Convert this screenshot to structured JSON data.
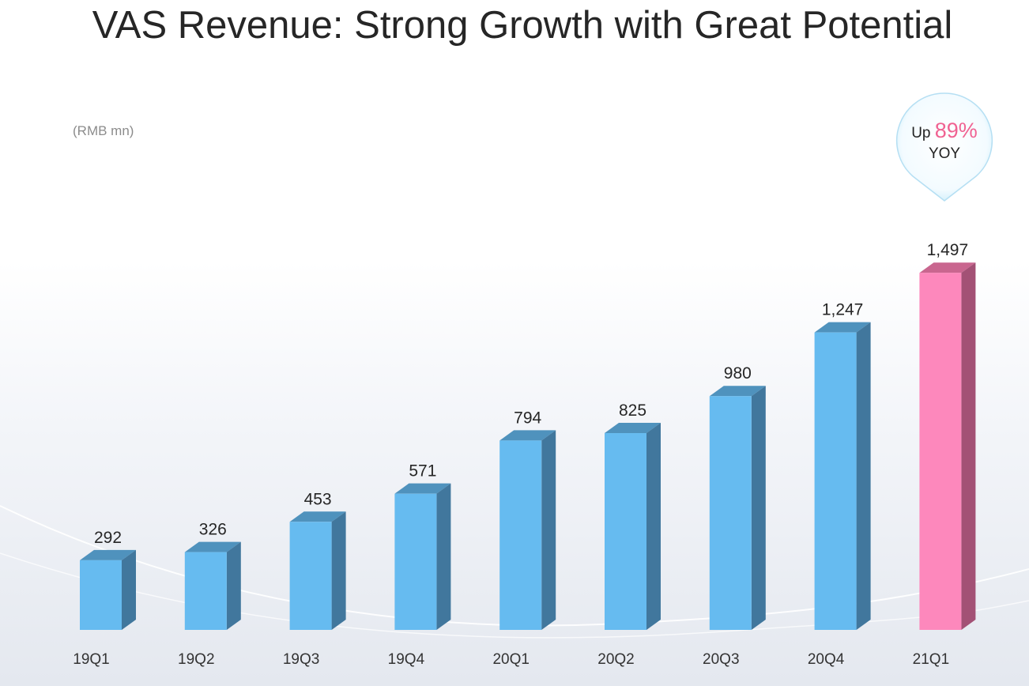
{
  "title": "VAS Revenue: Strong Growth with Great Potential",
  "unit_label": "(RMB mn)",
  "callout": {
    "prefix": "Up",
    "value": "89%",
    "suffix": "YOY"
  },
  "colors": {
    "bar_front": "#66bbf0",
    "bar_top": "#4f92bd",
    "bar_side": "#41779d",
    "highlight_front": "#fd88bc",
    "highlight_top": "#c9668f",
    "highlight_side": "#a35175"
  },
  "chart_data": {
    "type": "bar",
    "categories": [
      "19Q1",
      "19Q2",
      "19Q3",
      "19Q4",
      "20Q1",
      "20Q2",
      "20Q3",
      "20Q4",
      "21Q1"
    ],
    "values": [
      292,
      326,
      453,
      571,
      794,
      825,
      980,
      1247,
      1497
    ],
    "value_labels": [
      "292",
      "326",
      "453",
      "571",
      "794",
      "825",
      "980",
      "1,247",
      "1,497"
    ],
    "highlight_index": 8,
    "title": "VAS Revenue: Strong Growth with Great Potential",
    "ylabel": "(RMB mn)",
    "grid": false
  }
}
